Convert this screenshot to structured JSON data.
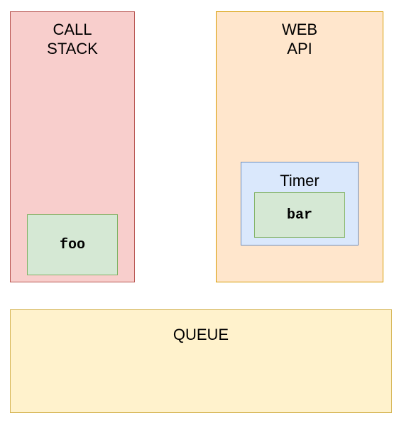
{
  "call_stack": {
    "label": "CALL\nSTACK",
    "fill": "#f8cecc",
    "stroke": "#b85450",
    "frames": [
      {
        "label": "foo",
        "fill": "#d5e8d4",
        "stroke": "#82b366"
      }
    ]
  },
  "web_api": {
    "label": "WEB\nAPI",
    "fill": "#ffe6cc",
    "stroke": "#d79b00",
    "timer": {
      "label": "Timer",
      "fill": "#dae8fc",
      "stroke": "#6c8ebf",
      "callback": {
        "label": "bar",
        "fill": "#d5e8d4",
        "stroke": "#82b366"
      }
    }
  },
  "queue": {
    "label": "QUEUE",
    "fill": "#fff2cc",
    "stroke": "#d6b656"
  }
}
